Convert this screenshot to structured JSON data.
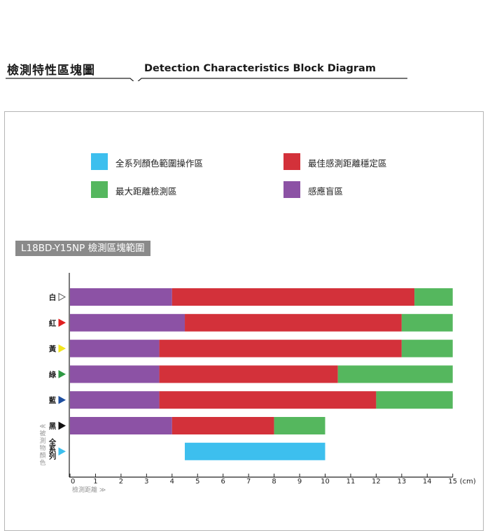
{
  "header": {
    "title_cn": "檢測特性區塊圖",
    "title_en": "Detection Characteristics Block Diagram"
  },
  "legend": [
    {
      "label": "全系列顏色範圍操作區",
      "color": "#3dbfee"
    },
    {
      "label": "最佳感測距離穩定區",
      "color": "#d3313a"
    },
    {
      "label": "最大距離檢測區",
      "color": "#55b75e"
    },
    {
      "label": "感應盲區",
      "color": "#8c52a5"
    }
  ],
  "chart_data": {
    "type": "bar",
    "orientation": "horizontal-stacked",
    "title": "L18BD-Y15NP 檢測區塊範圍",
    "xlabel": "檢測距離 ≫",
    "ylabel": "≪被測物顏色",
    "x_unit": "(cm)",
    "xlim": [
      0,
      15
    ],
    "x_ticks": [
      0,
      1,
      2,
      3,
      4,
      5,
      6,
      7,
      8,
      9,
      10,
      11,
      12,
      13,
      14,
      15
    ],
    "categories": [
      {
        "label": "白",
        "marker_color": "#ffffff",
        "marker_outline": true
      },
      {
        "label": "紅",
        "marker_color": "#e02020"
      },
      {
        "label": "黃",
        "marker_color": "#f2e51d"
      },
      {
        "label": "綠",
        "marker_color": "#2f9a43"
      },
      {
        "label": "藍",
        "marker_color": "#1f4fa0"
      },
      {
        "label": "黑",
        "marker_color": "#111111"
      },
      {
        "label": "全系列",
        "marker_color": "#3dbfee"
      }
    ],
    "bars": [
      {
        "category": "白",
        "segments": [
          {
            "zone": "感應盲區",
            "start": 0,
            "end": 4,
            "color": "#8c52a5"
          },
          {
            "zone": "最佳感測距離穩定區",
            "start": 4,
            "end": 13.5,
            "color": "#d3313a"
          },
          {
            "zone": "最大距離檢測區",
            "start": 13.5,
            "end": 15,
            "color": "#55b75e"
          }
        ]
      },
      {
        "category": "紅",
        "segments": [
          {
            "zone": "感應盲區",
            "start": 0,
            "end": 4.5,
            "color": "#8c52a5"
          },
          {
            "zone": "最佳感測距離穩定區",
            "start": 4.5,
            "end": 13,
            "color": "#d3313a"
          },
          {
            "zone": "最大距離檢測區",
            "start": 13,
            "end": 15,
            "color": "#55b75e"
          }
        ]
      },
      {
        "category": "黃",
        "segments": [
          {
            "zone": "感應盲區",
            "start": 0,
            "end": 3.5,
            "color": "#8c52a5"
          },
          {
            "zone": "最佳感測距離穩定區",
            "start": 3.5,
            "end": 13,
            "color": "#d3313a"
          },
          {
            "zone": "最大距離檢測區",
            "start": 13,
            "end": 15,
            "color": "#55b75e"
          }
        ]
      },
      {
        "category": "綠",
        "segments": [
          {
            "zone": "感應盲區",
            "start": 0,
            "end": 3.5,
            "color": "#8c52a5"
          },
          {
            "zone": "最佳感測距離穩定區",
            "start": 3.5,
            "end": 10.5,
            "color": "#d3313a"
          },
          {
            "zone": "最大距離檢測區",
            "start": 10.5,
            "end": 15,
            "color": "#55b75e"
          }
        ]
      },
      {
        "category": "藍",
        "segments": [
          {
            "zone": "感應盲區",
            "start": 0,
            "end": 3.5,
            "color": "#8c52a5"
          },
          {
            "zone": "最佳感測距離穩定區",
            "start": 3.5,
            "end": 12,
            "color": "#d3313a"
          },
          {
            "zone": "最大距離檢測區",
            "start": 12,
            "end": 15,
            "color": "#55b75e"
          }
        ]
      },
      {
        "category": "黑",
        "segments": [
          {
            "zone": "感應盲區",
            "start": 0,
            "end": 4,
            "color": "#8c52a5"
          },
          {
            "zone": "最佳感測距離穩定區",
            "start": 4,
            "end": 8,
            "color": "#d3313a"
          },
          {
            "zone": "最大距離檢測區",
            "start": 8,
            "end": 10,
            "color": "#55b75e"
          }
        ]
      },
      {
        "category": "全系列",
        "segments": [
          {
            "zone": "全系列顏色範圍操作區",
            "start": 4.5,
            "end": 10,
            "color": "#3dbfee"
          }
        ]
      }
    ]
  }
}
